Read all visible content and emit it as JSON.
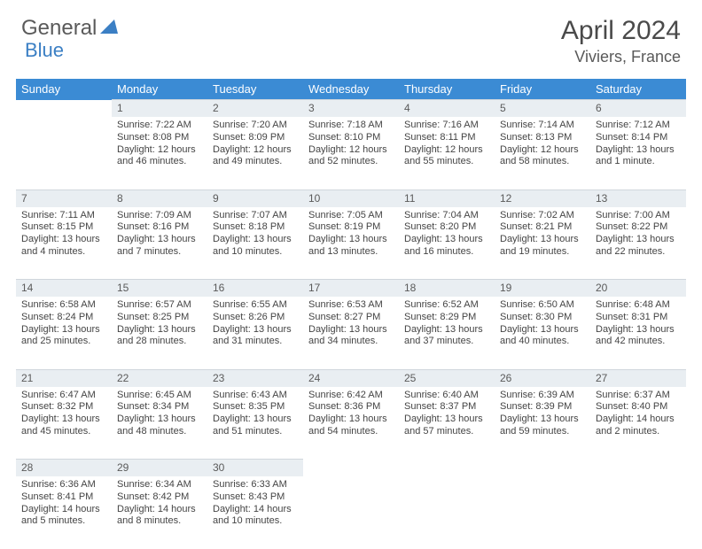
{
  "brand": {
    "word1": "General",
    "word2": "Blue"
  },
  "title": {
    "month": "April 2024",
    "location": "Viviers, France"
  },
  "colors": {
    "header_bg": "#3b8bd4",
    "header_text": "#ffffff",
    "daynum_bg": "#e9eef2",
    "body_text": "#444444",
    "title_text": "#4a4a4a",
    "logo_gray": "#5a5a5a",
    "logo_blue": "#3b7fc4"
  },
  "weekdays": [
    "Sunday",
    "Monday",
    "Tuesday",
    "Wednesday",
    "Thursday",
    "Friday",
    "Saturday"
  ],
  "weeks": [
    {
      "nums": [
        "",
        "1",
        "2",
        "3",
        "4",
        "5",
        "6"
      ],
      "cells": [
        null,
        {
          "sr": "Sunrise: 7:22 AM",
          "ss": "Sunset: 8:08 PM",
          "d1": "Daylight: 12 hours",
          "d2": "and 46 minutes."
        },
        {
          "sr": "Sunrise: 7:20 AM",
          "ss": "Sunset: 8:09 PM",
          "d1": "Daylight: 12 hours",
          "d2": "and 49 minutes."
        },
        {
          "sr": "Sunrise: 7:18 AM",
          "ss": "Sunset: 8:10 PM",
          "d1": "Daylight: 12 hours",
          "d2": "and 52 minutes."
        },
        {
          "sr": "Sunrise: 7:16 AM",
          "ss": "Sunset: 8:11 PM",
          "d1": "Daylight: 12 hours",
          "d2": "and 55 minutes."
        },
        {
          "sr": "Sunrise: 7:14 AM",
          "ss": "Sunset: 8:13 PM",
          "d1": "Daylight: 12 hours",
          "d2": "and 58 minutes."
        },
        {
          "sr": "Sunrise: 7:12 AM",
          "ss": "Sunset: 8:14 PM",
          "d1": "Daylight: 13 hours",
          "d2": "and 1 minute."
        }
      ]
    },
    {
      "nums": [
        "7",
        "8",
        "9",
        "10",
        "11",
        "12",
        "13"
      ],
      "cells": [
        {
          "sr": "Sunrise: 7:11 AM",
          "ss": "Sunset: 8:15 PM",
          "d1": "Daylight: 13 hours",
          "d2": "and 4 minutes."
        },
        {
          "sr": "Sunrise: 7:09 AM",
          "ss": "Sunset: 8:16 PM",
          "d1": "Daylight: 13 hours",
          "d2": "and 7 minutes."
        },
        {
          "sr": "Sunrise: 7:07 AM",
          "ss": "Sunset: 8:18 PM",
          "d1": "Daylight: 13 hours",
          "d2": "and 10 minutes."
        },
        {
          "sr": "Sunrise: 7:05 AM",
          "ss": "Sunset: 8:19 PM",
          "d1": "Daylight: 13 hours",
          "d2": "and 13 minutes."
        },
        {
          "sr": "Sunrise: 7:04 AM",
          "ss": "Sunset: 8:20 PM",
          "d1": "Daylight: 13 hours",
          "d2": "and 16 minutes."
        },
        {
          "sr": "Sunrise: 7:02 AM",
          "ss": "Sunset: 8:21 PM",
          "d1": "Daylight: 13 hours",
          "d2": "and 19 minutes."
        },
        {
          "sr": "Sunrise: 7:00 AM",
          "ss": "Sunset: 8:22 PM",
          "d1": "Daylight: 13 hours",
          "d2": "and 22 minutes."
        }
      ]
    },
    {
      "nums": [
        "14",
        "15",
        "16",
        "17",
        "18",
        "19",
        "20"
      ],
      "cells": [
        {
          "sr": "Sunrise: 6:58 AM",
          "ss": "Sunset: 8:24 PM",
          "d1": "Daylight: 13 hours",
          "d2": "and 25 minutes."
        },
        {
          "sr": "Sunrise: 6:57 AM",
          "ss": "Sunset: 8:25 PM",
          "d1": "Daylight: 13 hours",
          "d2": "and 28 minutes."
        },
        {
          "sr": "Sunrise: 6:55 AM",
          "ss": "Sunset: 8:26 PM",
          "d1": "Daylight: 13 hours",
          "d2": "and 31 minutes."
        },
        {
          "sr": "Sunrise: 6:53 AM",
          "ss": "Sunset: 8:27 PM",
          "d1": "Daylight: 13 hours",
          "d2": "and 34 minutes."
        },
        {
          "sr": "Sunrise: 6:52 AM",
          "ss": "Sunset: 8:29 PM",
          "d1": "Daylight: 13 hours",
          "d2": "and 37 minutes."
        },
        {
          "sr": "Sunrise: 6:50 AM",
          "ss": "Sunset: 8:30 PM",
          "d1": "Daylight: 13 hours",
          "d2": "and 40 minutes."
        },
        {
          "sr": "Sunrise: 6:48 AM",
          "ss": "Sunset: 8:31 PM",
          "d1": "Daylight: 13 hours",
          "d2": "and 42 minutes."
        }
      ]
    },
    {
      "nums": [
        "21",
        "22",
        "23",
        "24",
        "25",
        "26",
        "27"
      ],
      "cells": [
        {
          "sr": "Sunrise: 6:47 AM",
          "ss": "Sunset: 8:32 PM",
          "d1": "Daylight: 13 hours",
          "d2": "and 45 minutes."
        },
        {
          "sr": "Sunrise: 6:45 AM",
          "ss": "Sunset: 8:34 PM",
          "d1": "Daylight: 13 hours",
          "d2": "and 48 minutes."
        },
        {
          "sr": "Sunrise: 6:43 AM",
          "ss": "Sunset: 8:35 PM",
          "d1": "Daylight: 13 hours",
          "d2": "and 51 minutes."
        },
        {
          "sr": "Sunrise: 6:42 AM",
          "ss": "Sunset: 8:36 PM",
          "d1": "Daylight: 13 hours",
          "d2": "and 54 minutes."
        },
        {
          "sr": "Sunrise: 6:40 AM",
          "ss": "Sunset: 8:37 PM",
          "d1": "Daylight: 13 hours",
          "d2": "and 57 minutes."
        },
        {
          "sr": "Sunrise: 6:39 AM",
          "ss": "Sunset: 8:39 PM",
          "d1": "Daylight: 13 hours",
          "d2": "and 59 minutes."
        },
        {
          "sr": "Sunrise: 6:37 AM",
          "ss": "Sunset: 8:40 PM",
          "d1": "Daylight: 14 hours",
          "d2": "and 2 minutes."
        }
      ]
    },
    {
      "nums": [
        "28",
        "29",
        "30",
        "",
        "",
        "",
        ""
      ],
      "cells": [
        {
          "sr": "Sunrise: 6:36 AM",
          "ss": "Sunset: 8:41 PM",
          "d1": "Daylight: 14 hours",
          "d2": "and 5 minutes."
        },
        {
          "sr": "Sunrise: 6:34 AM",
          "ss": "Sunset: 8:42 PM",
          "d1": "Daylight: 14 hours",
          "d2": "and 8 minutes."
        },
        {
          "sr": "Sunrise: 6:33 AM",
          "ss": "Sunset: 8:43 PM",
          "d1": "Daylight: 14 hours",
          "d2": "and 10 minutes."
        },
        null,
        null,
        null,
        null
      ]
    }
  ]
}
